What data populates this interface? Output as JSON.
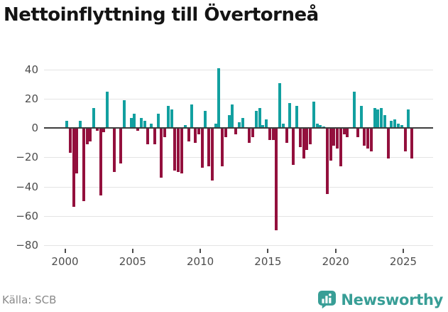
{
  "title": "Nettoinflyttning till Övertorneå",
  "source": "Källa: SCB",
  "brand": {
    "name": "Newsworthy",
    "color": "#389e96"
  },
  "chart_data": {
    "type": "bar",
    "title": "Nettoinflyttning till Övertorneå",
    "xlabel": "",
    "ylabel": "",
    "frequency": "quarterly",
    "start_period": "2000-Q1",
    "end_period": "2025-Q3",
    "x_tick_labels": [
      "2000",
      "2005",
      "2010",
      "2015",
      "2020",
      "2025"
    ],
    "yticks": [
      40,
      20,
      0,
      -20,
      -40,
      -60,
      -80
    ],
    "ylim": [
      -80,
      46
    ],
    "grid": "horizontal",
    "legend": "none",
    "positive_color": "#12a0a0",
    "negative_color": "#93103d",
    "values": [
      5,
      -17,
      -54,
      -31,
      5,
      -50,
      -11,
      -9,
      14,
      -2,
      -46,
      -3,
      25,
      0,
      -30,
      0,
      -24,
      19,
      0,
      7,
      10,
      -2,
      7,
      5,
      -11,
      3,
      -11,
      10,
      -34,
      -6,
      15,
      13,
      -29,
      -30,
      -31,
      2,
      -9,
      16,
      -10,
      -4,
      -27,
      12,
      -26,
      -36,
      3,
      41,
      -26,
      -6,
      9,
      16,
      -4,
      4,
      7,
      0,
      -10,
      -6,
      12,
      14,
      2,
      6,
      -8,
      -8,
      -70,
      31,
      3,
      -10,
      17,
      -25,
      15,
      -13,
      -21,
      -15,
      -11,
      18,
      3,
      2,
      1,
      -45,
      -22,
      -12,
      -14,
      -26,
      -4,
      -6,
      0,
      25,
      -6,
      15,
      -12,
      -14,
      -16,
      14,
      13,
      14,
      9,
      -21,
      5,
      6,
      3,
      2,
      -16,
      13,
      -21
    ]
  }
}
